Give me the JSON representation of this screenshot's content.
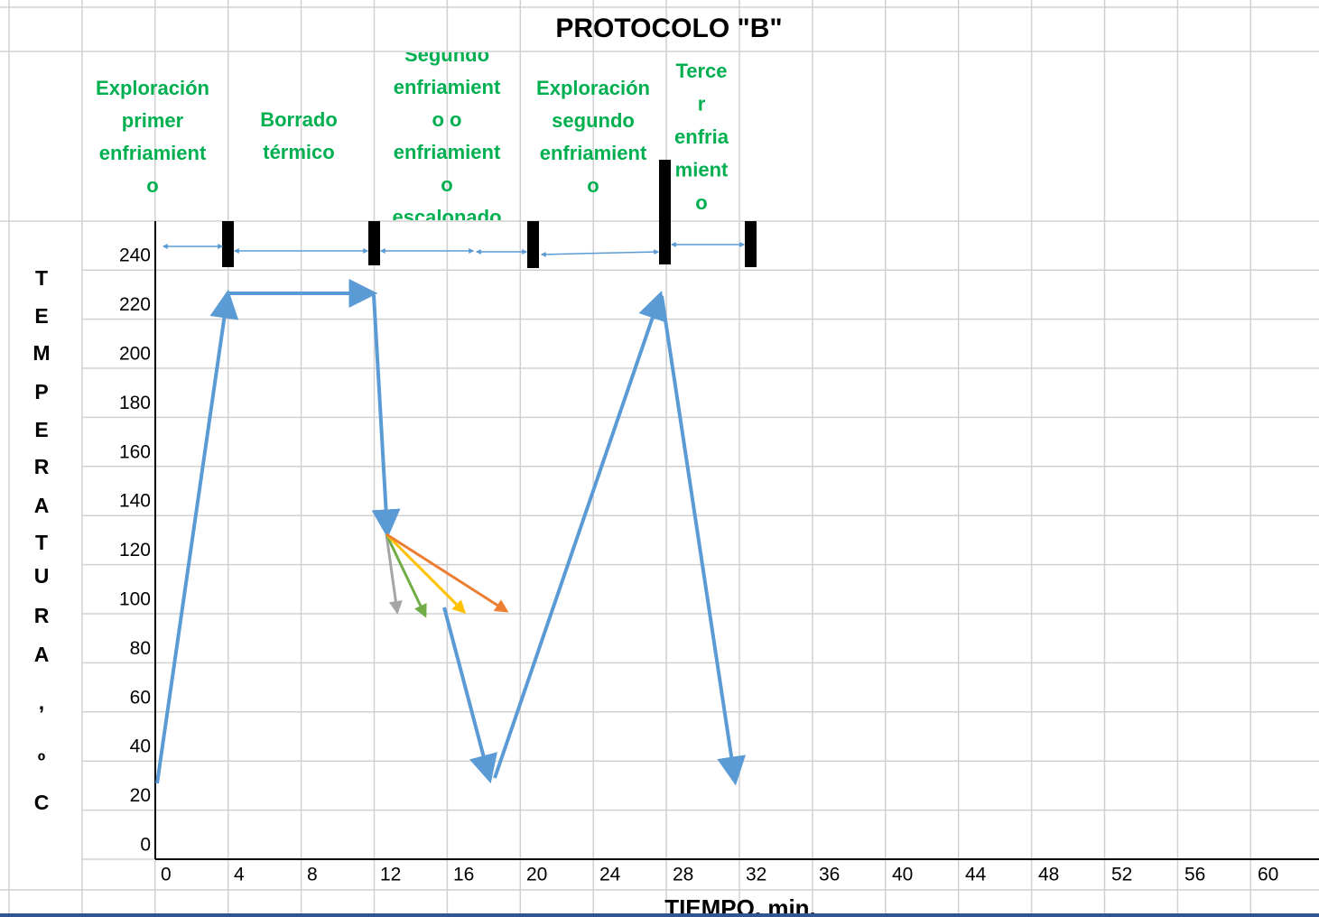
{
  "title": "PROTOCOLO \"B\"",
  "phases": [
    {
      "lines": [
        "Exploración",
        "primer",
        "enfriamient",
        "o"
      ]
    },
    {
      "lines": [
        "Borrado",
        "térmico"
      ]
    },
    {
      "lines": [
        "Segundo",
        "enfriamient",
        "o o",
        "enfriamient",
        "o",
        "escalonado"
      ]
    },
    {
      "lines": [
        "Exploración",
        "segundo",
        "enfriamient",
        "o"
      ]
    },
    {
      "lines": [
        "Terce",
        "r",
        "enfria",
        "mient",
        "o"
      ]
    }
  ],
  "y_axis_letters": [
    "T",
    "E",
    "M",
    "P",
    "E",
    "R",
    "A",
    "T",
    "U",
    "R",
    "A",
    ",",
    "º",
    "C"
  ],
  "y_ticks": [
    0,
    20,
    40,
    60,
    80,
    100,
    120,
    140,
    160,
    180,
    200,
    220,
    240
  ],
  "x_ticks": [
    0,
    4,
    8,
    12,
    16,
    20,
    24,
    28,
    32,
    36,
    40,
    44,
    48,
    52,
    56,
    60
  ],
  "x_axis_label": "TIEMPO, min."
}
